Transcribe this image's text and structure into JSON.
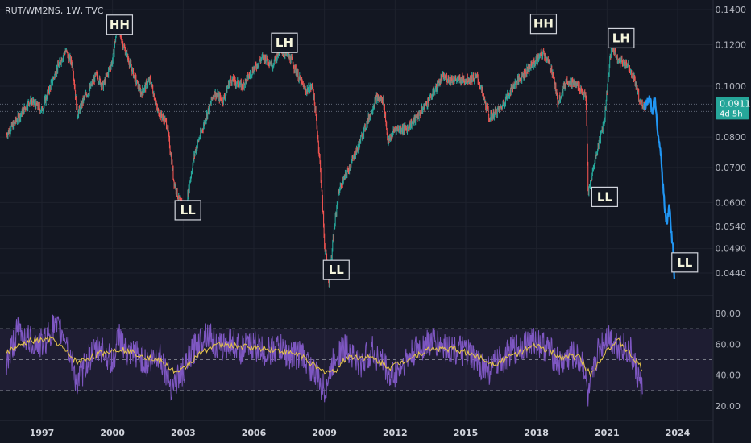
{
  "header": {
    "title": "RUT/WM2NS, 1W, TVC"
  },
  "price_badge": {
    "value": "0.0911",
    "countdown": "4d 5h",
    "color": "#26a69a"
  },
  "colors": {
    "up": "#26a69a",
    "down": "#ef5350",
    "projection": "#2196f3",
    "rsi": "#7e57c2",
    "rsi_ma": "#e6c54a",
    "rsi_band": "#7e57c2"
  },
  "chart_data": [
    {
      "type": "line",
      "title": "RUT/WM2NS, 1W, TVC",
      "scale": "log",
      "x_labels": [
        "1997",
        "2000",
        "2003",
        "2006",
        "2009",
        "2012",
        "2015",
        "2018",
        "2021",
        "2024"
      ],
      "y_ticks": [
        "0.1400",
        "0.1200",
        "0.1000",
        "0.0800",
        "0.0700",
        "0.0600",
        "0.0540",
        "0.0490",
        "0.0440"
      ],
      "last_price": 0.0911,
      "series": [
        {
          "points": [
            [
              1995.5,
              0.081
            ],
            [
              1996.0,
              0.087
            ],
            [
              1996.5,
              0.094
            ],
            [
              1997.0,
              0.09
            ],
            [
              1997.5,
              0.104
            ],
            [
              1997.8,
              0.112
            ],
            [
              1998.0,
              0.117
            ],
            [
              1998.3,
              0.11
            ],
            [
              1998.5,
              0.088
            ],
            [
              1998.8,
              0.095
            ],
            [
              1999.0,
              0.098
            ],
            [
              1999.3,
              0.105
            ],
            [
              1999.6,
              0.1
            ],
            [
              2000.0,
              0.112
            ],
            [
              2000.2,
              0.13
            ],
            [
              2000.5,
              0.118
            ],
            [
              2000.9,
              0.105
            ],
            [
              2001.2,
              0.097
            ],
            [
              2001.6,
              0.103
            ],
            [
              2001.9,
              0.09
            ],
            [
              2002.3,
              0.085
            ],
            [
              2002.6,
              0.066
            ],
            [
              2002.8,
              0.061
            ],
            [
              2003.1,
              0.058
            ],
            [
              2003.5,
              0.075
            ],
            [
              2003.9,
              0.085
            ],
            [
              2004.3,
              0.097
            ],
            [
              2004.7,
              0.094
            ],
            [
              2005.0,
              0.103
            ],
            [
              2005.5,
              0.1
            ],
            [
              2006.0,
              0.108
            ],
            [
              2006.4,
              0.114
            ],
            [
              2006.8,
              0.11
            ],
            [
              2007.1,
              0.117
            ],
            [
              2007.3,
              0.116
            ],
            [
              2007.6,
              0.112
            ],
            [
              2007.9,
              0.104
            ],
            [
              2008.2,
              0.098
            ],
            [
              2008.5,
              0.1
            ],
            [
              2008.8,
              0.072
            ],
            [
              2009.0,
              0.05
            ],
            [
              2009.2,
              0.042
            ],
            [
              2009.6,
              0.063
            ],
            [
              2010.0,
              0.069
            ],
            [
              2010.4,
              0.076
            ],
            [
              2010.8,
              0.085
            ],
            [
              2011.2,
              0.095
            ],
            [
              2011.5,
              0.094
            ],
            [
              2011.7,
              0.078
            ],
            [
              2012.0,
              0.083
            ],
            [
              2012.5,
              0.083
            ],
            [
              2013.0,
              0.088
            ],
            [
              2013.5,
              0.095
            ],
            [
              2014.0,
              0.104
            ],
            [
              2014.5,
              0.103
            ],
            [
              2015.0,
              0.103
            ],
            [
              2015.5,
              0.104
            ],
            [
              2016.0,
              0.087
            ],
            [
              2016.5,
              0.091
            ],
            [
              2017.0,
              0.1
            ],
            [
              2017.5,
              0.106
            ],
            [
              2018.0,
              0.112
            ],
            [
              2018.3,
              0.116
            ],
            [
              2018.7,
              0.106
            ],
            [
              2018.9,
              0.093
            ],
            [
              2019.3,
              0.103
            ],
            [
              2019.8,
              0.1
            ],
            [
              2020.1,
              0.095
            ],
            [
              2020.2,
              0.062
            ],
            [
              2020.6,
              0.076
            ],
            [
              2020.9,
              0.087
            ],
            [
              2021.1,
              0.11
            ],
            [
              2021.2,
              0.119
            ],
            [
              2021.5,
              0.112
            ],
            [
              2021.9,
              0.11
            ],
            [
              2022.2,
              0.102
            ],
            [
              2022.4,
              0.093
            ],
            [
              2022.6,
              0.092
            ]
          ]
        },
        {
          "name": "",
          "points": [
            [
              2022.6,
              0.092
            ],
            [
              2022.8,
              0.095
            ],
            [
              2022.95,
              0.089
            ],
            [
              2023.05,
              0.095
            ],
            [
              2023.15,
              0.082
            ],
            [
              2023.25,
              0.077
            ],
            [
              2023.35,
              0.067
            ],
            [
              2023.45,
              0.058
            ],
            [
              2023.55,
              0.054
            ],
            [
              2023.65,
              0.06
            ],
            [
              2023.7,
              0.054
            ],
            [
              2023.8,
              0.049
            ],
            [
              2023.87,
              0.042
            ]
          ]
        }
      ],
      "annotations": [
        {
          "label": "HH",
          "x": 2000.3,
          "y": 0.131
        },
        {
          "label": "LH",
          "x": 2007.3,
          "y": 0.121
        },
        {
          "label": "LL",
          "x": 2003.2,
          "y": 0.058
        },
        {
          "label": "LL",
          "x": 2009.5,
          "y": 0.0446
        },
        {
          "label": "HH",
          "x": 2018.3,
          "y": 0.1315
        },
        {
          "label": "LH",
          "x": 2021.6,
          "y": 0.1235
        },
        {
          "label": "LL",
          "x": 2020.9,
          "y": 0.0615
        },
        {
          "label": "LL",
          "x": 2024.3,
          "y": 0.0461
        }
      ]
    },
    {
      "type": "line",
      "y_ticks": [
        "80.00",
        "60.00",
        "40.00",
        "20.00"
      ],
      "ylim": [
        15,
        85
      ],
      "bands": [
        70,
        50,
        30
      ],
      "series": [
        {
          "points": [
            [
              1995.5,
              48
            ],
            [
              1996.0,
              70
            ],
            [
              1996.5,
              62
            ],
            [
              1997.0,
              60
            ],
            [
              1997.5,
              71
            ],
            [
              1998.0,
              66
            ],
            [
              1998.5,
              34
            ],
            [
              1999.0,
              52
            ],
            [
              1999.5,
              58
            ],
            [
              2000.0,
              48
            ],
            [
              2000.3,
              67
            ],
            [
              2000.6,
              51
            ],
            [
              2001.0,
              54
            ],
            [
              2001.5,
              47
            ],
            [
              2002.0,
              54
            ],
            [
              2002.5,
              33
            ],
            [
              2003.0,
              42
            ],
            [
              2003.5,
              58
            ],
            [
              2004.0,
              68
            ],
            [
              2004.5,
              57
            ],
            [
              2005.0,
              62
            ],
            [
              2005.5,
              56
            ],
            [
              2006.0,
              60
            ],
            [
              2006.5,
              54
            ],
            [
              2007.0,
              58
            ],
            [
              2007.5,
              53
            ],
            [
              2008.0,
              54
            ],
            [
              2008.5,
              43
            ],
            [
              2009.0,
              30
            ],
            [
              2009.5,
              54
            ],
            [
              2010.0,
              58
            ],
            [
              2010.5,
              46
            ],
            [
              2011.0,
              56
            ],
            [
              2011.5,
              48
            ],
            [
              2011.8,
              38
            ],
            [
              2012.5,
              50
            ],
            [
              2013.0,
              57
            ],
            [
              2013.5,
              62
            ],
            [
              2014.0,
              59
            ],
            [
              2014.5,
              56
            ],
            [
              2015.0,
              55
            ],
            [
              2015.5,
              48
            ],
            [
              2016.0,
              43
            ],
            [
              2016.5,
              50
            ],
            [
              2017.0,
              56
            ],
            [
              2017.5,
              60
            ],
            [
              2018.0,
              62
            ],
            [
              2018.5,
              57
            ],
            [
              2019.0,
              47
            ],
            [
              2019.5,
              53
            ],
            [
              2020.0,
              48
            ],
            [
              2020.2,
              24
            ],
            [
              2020.6,
              55
            ],
            [
              2021.0,
              66
            ],
            [
              2021.3,
              61
            ],
            [
              2021.7,
              58
            ],
            [
              2022.0,
              55
            ],
            [
              2022.3,
              40
            ],
            [
              2022.5,
              30
            ]
          ]
        },
        {
          "points": [
            [
              1995.5,
              55
            ],
            [
              1996.5,
              62
            ],
            [
              1997.5,
              63
            ],
            [
              1998.5,
              48
            ],
            [
              1999.5,
              54
            ],
            [
              2000.3,
              57
            ],
            [
              2001.0,
              54
            ],
            [
              2002.0,
              49
            ],
            [
              2002.8,
              41
            ],
            [
              2003.5,
              51
            ],
            [
              2004.3,
              60
            ],
            [
              2005.0,
              59
            ],
            [
              2006.0,
              58
            ],
            [
              2007.0,
              56
            ],
            [
              2008.0,
              53
            ],
            [
              2008.8,
              43
            ],
            [
              2009.4,
              42
            ],
            [
              2010.0,
              52
            ],
            [
              2011.0,
              51
            ],
            [
              2011.8,
              45
            ],
            [
              2012.5,
              50
            ],
            [
              2013.5,
              57
            ],
            [
              2014.5,
              57
            ],
            [
              2015.5,
              52
            ],
            [
              2016.2,
              47
            ],
            [
              2017.0,
              53
            ],
            [
              2018.0,
              59
            ],
            [
              2019.0,
              52
            ],
            [
              2019.8,
              52
            ],
            [
              2020.3,
              40
            ],
            [
              2021.0,
              57
            ],
            [
              2021.5,
              62
            ],
            [
              2022.0,
              53
            ],
            [
              2022.5,
              44
            ]
          ]
        }
      ]
    }
  ]
}
